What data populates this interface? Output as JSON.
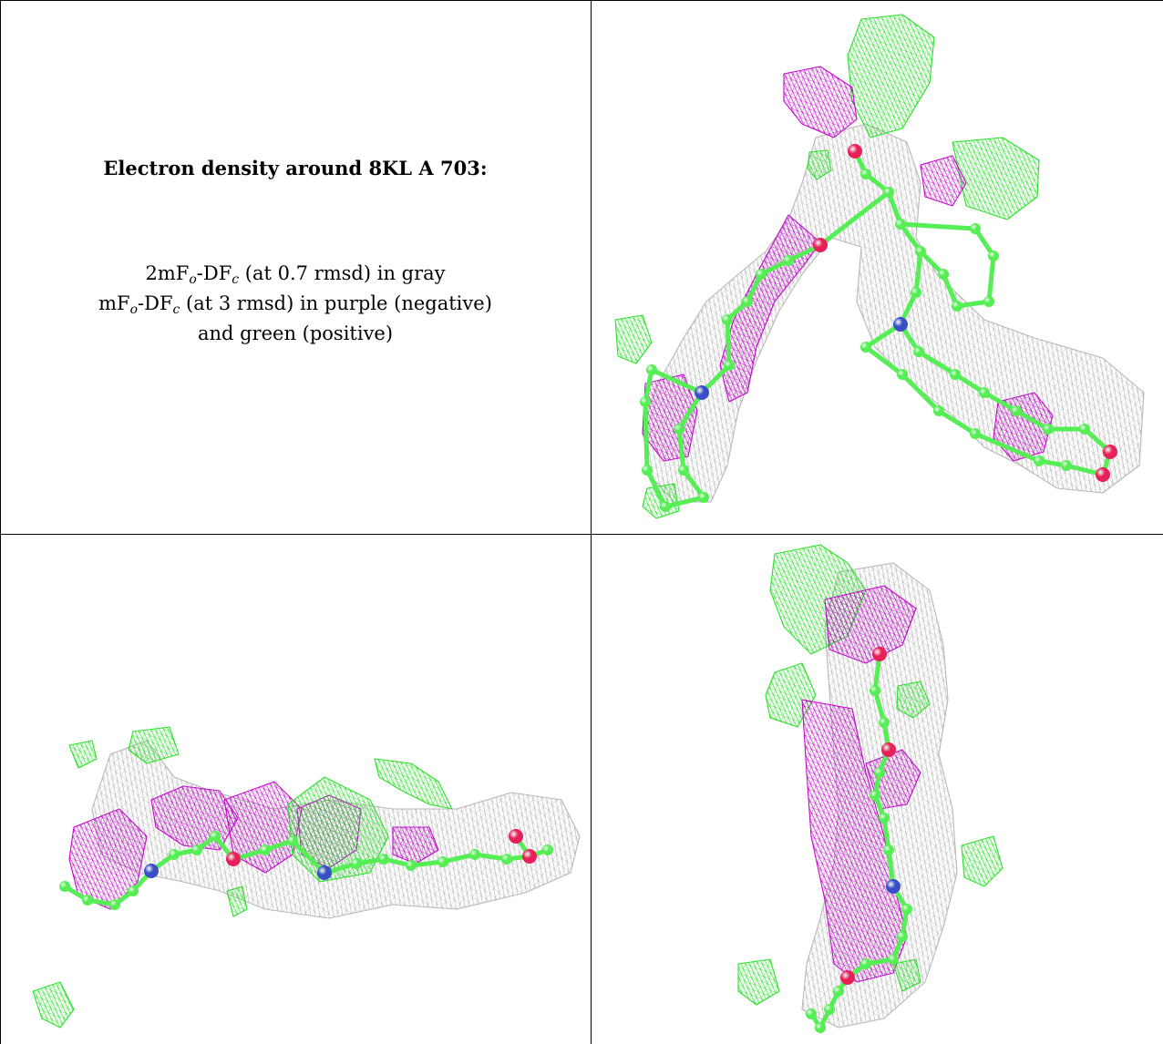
{
  "caption": {
    "title": "Electron density around 8KL A 703:",
    "line1_prefix": "2mF",
    "line1_sub1": "o",
    "line1_mid": "-DF",
    "line1_sub2": "c",
    "line1_suffix": " (at 0.7 rmsd) in gray",
    "line2_prefix": "mF",
    "line2_sub1": "o",
    "line2_mid": "-DF",
    "line2_sub2": "c",
    "line2_suffix": " (at 3 rmsd) in purple (negative)",
    "line3": "and green (positive)"
  },
  "colors": {
    "gray_mesh": "#b4b4b4",
    "negative_mesh": "#c000c8",
    "positive_mesh": "#22e022",
    "carbon": "#55ee55",
    "oxygen": "#e8205a",
    "nitrogen": "#3a4ec8"
  }
}
